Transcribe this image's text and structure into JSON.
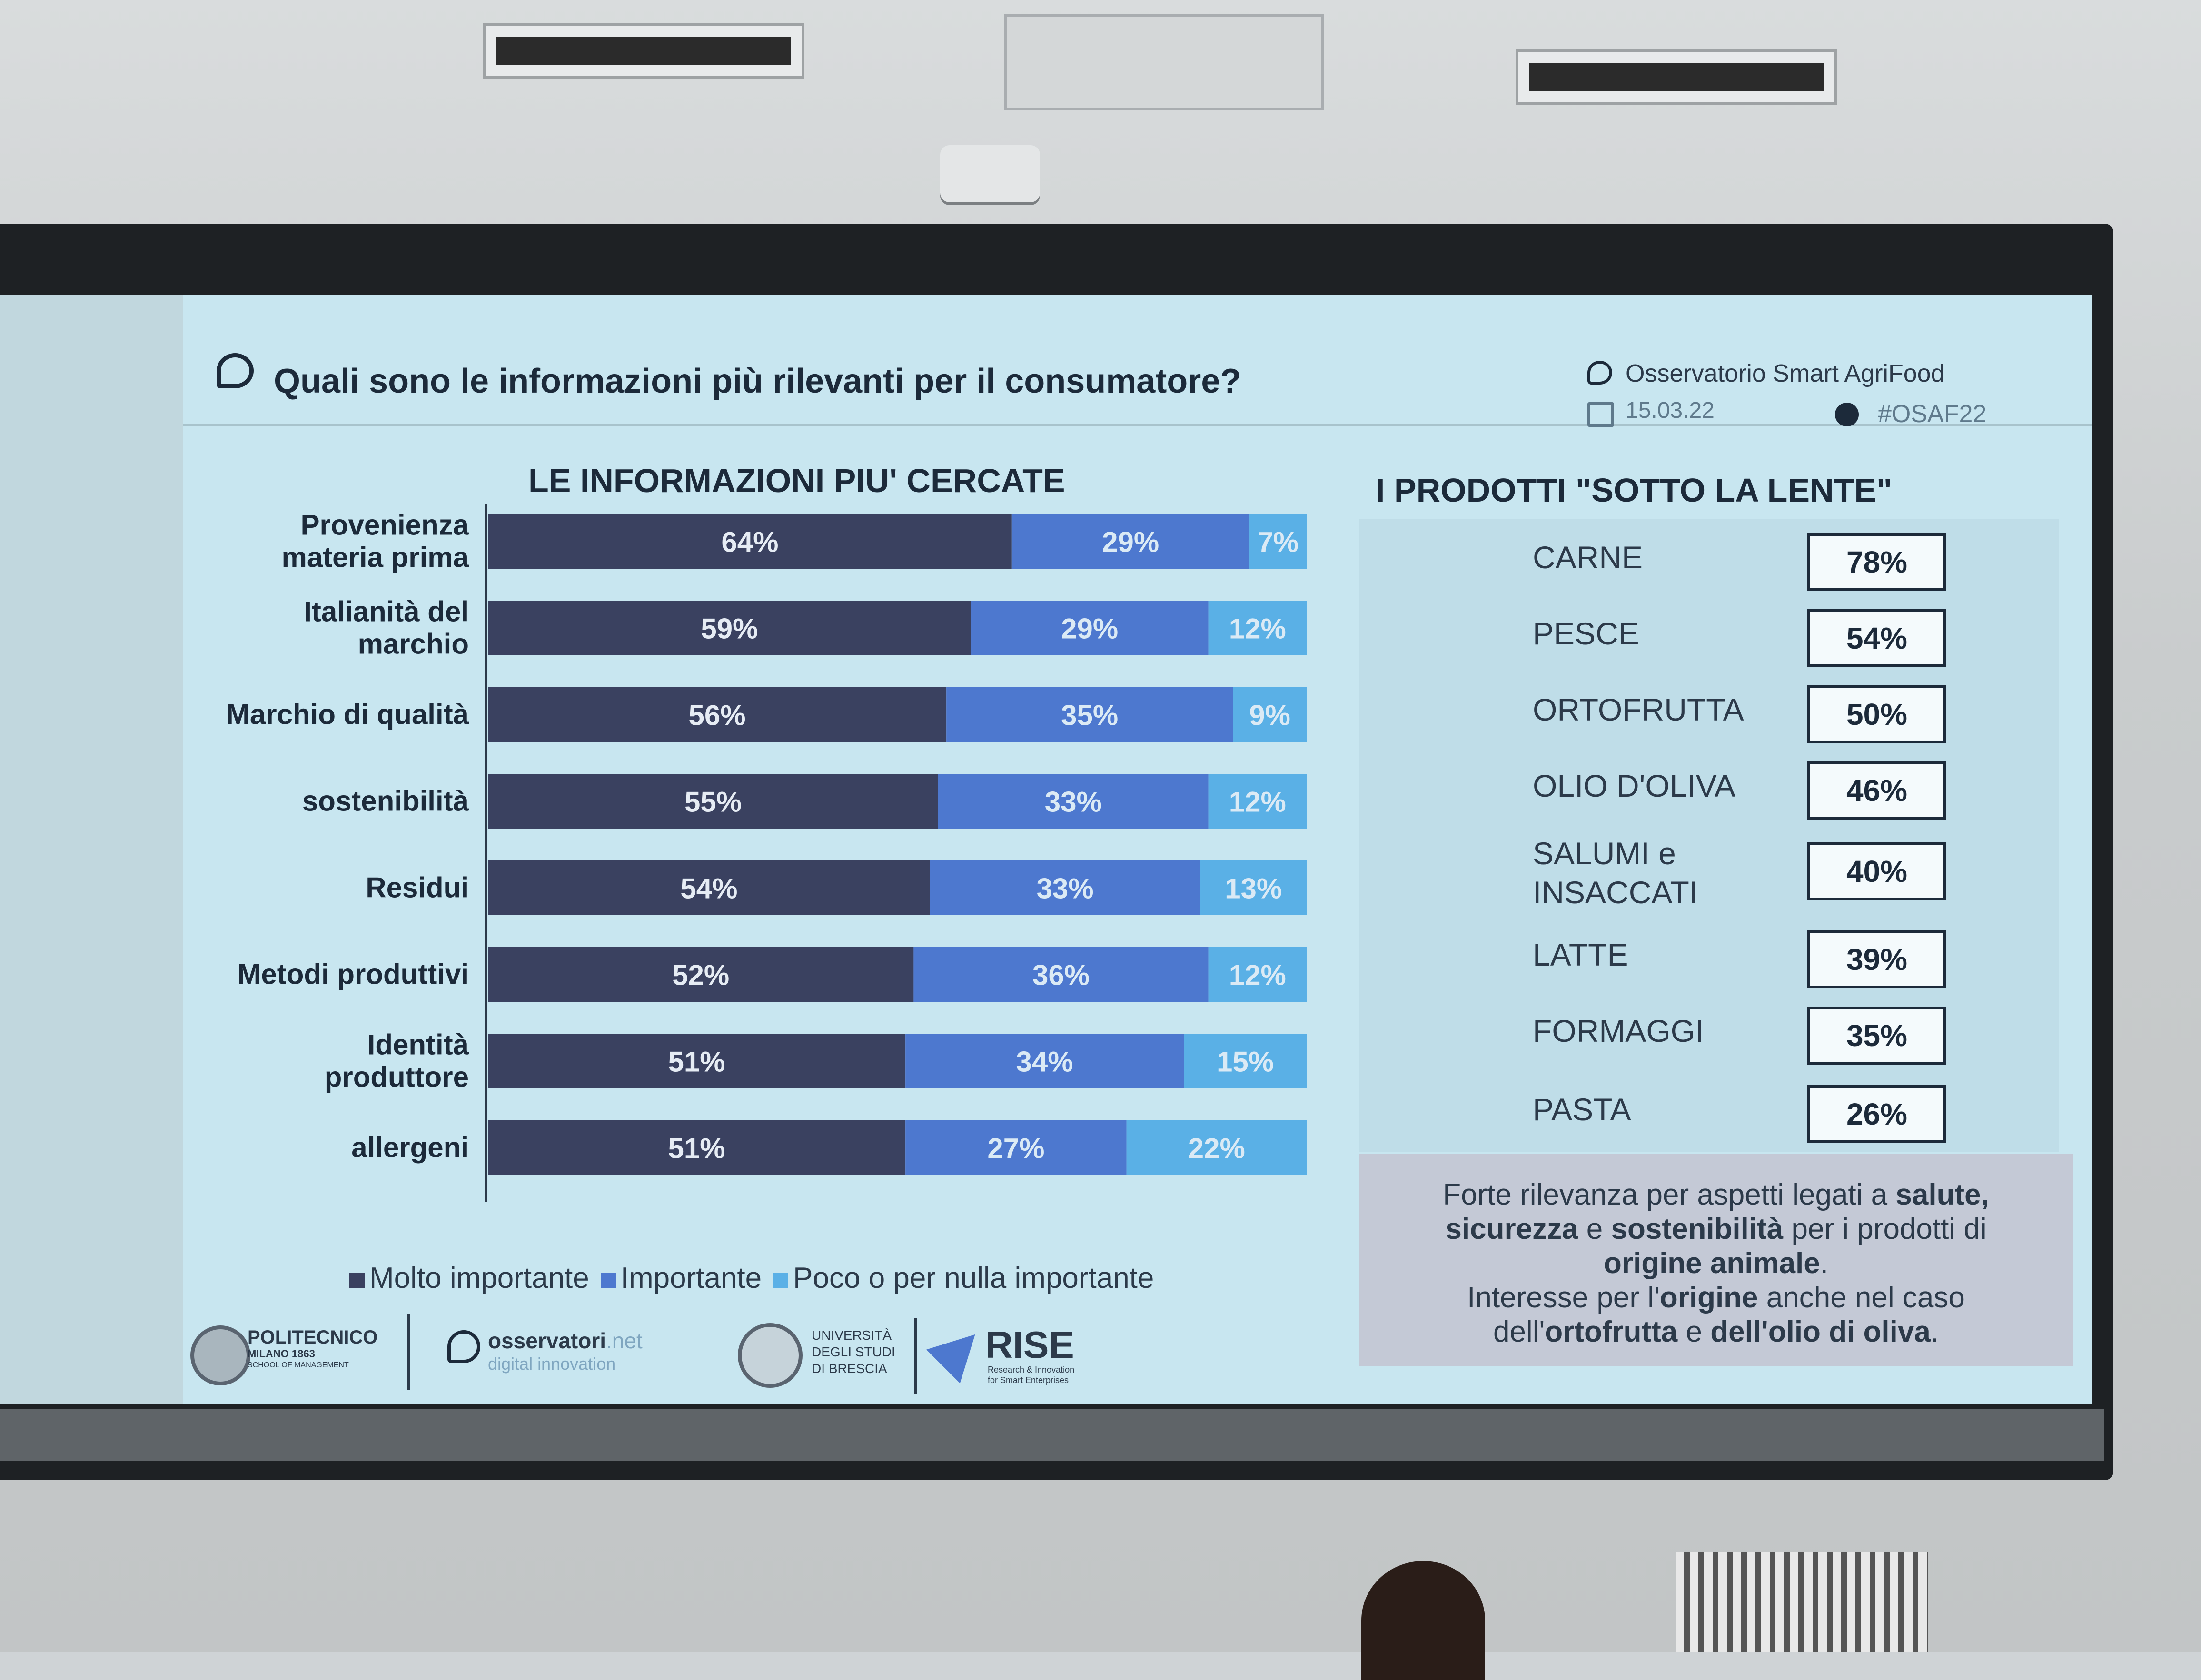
{
  "header": {
    "title": "Quali sono le informazioni più rilevanti per il consumatore?",
    "org": "Osservatorio Smart AgriFood",
    "date": "15.03.22",
    "hashtag": "#OSAF22"
  },
  "chart_data": [
    {
      "type": "bar",
      "orientation": "horizontal",
      "stacked": true,
      "title": "LE INFORMAZIONI PIU' CERCATE",
      "categories": [
        [
          "Provenienza",
          "materia prima"
        ],
        [
          "Italianità del",
          "marchio"
        ],
        [
          "Marchio di qualità"
        ],
        [
          "sostenibilità"
        ],
        [
          "Residui"
        ],
        [
          "Metodi produttivi"
        ],
        [
          "Identità",
          "produttore"
        ],
        [
          "allergeni"
        ]
      ],
      "series": [
        {
          "name": "Molto importante",
          "values": [
            64,
            59,
            56,
            55,
            54,
            52,
            51,
            51
          ],
          "labels": [
            "64%",
            "59%",
            "56%",
            "55%",
            "54%",
            "52%",
            "51%",
            "51%"
          ]
        },
        {
          "name": "Importante",
          "values": [
            29,
            29,
            35,
            33,
            33,
            36,
            34,
            27
          ],
          "labels": [
            "29%",
            "29%",
            "35%",
            "33%",
            "33%",
            "36%",
            "34%",
            "27%"
          ]
        },
        {
          "name": "Poco o per nulla importante",
          "values": [
            7,
            12,
            9,
            12,
            13,
            12,
            15,
            22
          ],
          "labels": [
            "7%",
            "12%",
            "9%",
            "12%",
            "13%",
            "12%",
            "15%",
            "22%"
          ]
        }
      ],
      "colors": [
        "#3a4160",
        "#4d78cf",
        "#5ab0e6"
      ],
      "xlim": [
        0,
        100
      ],
      "legend": "bottom"
    },
    {
      "type": "table",
      "title": "I PRODOTTI \"SOTTO LA LENTE\"",
      "rows": [
        {
          "label": [
            "CARNE"
          ],
          "value": "78%"
        },
        {
          "label": [
            "PESCE"
          ],
          "value": "54%"
        },
        {
          "label": [
            "ORTOFRUTTA"
          ],
          "value": "50%"
        },
        {
          "label": [
            "OLIO D'OLIVA"
          ],
          "value": "46%"
        },
        {
          "label": [
            "SALUMI e",
            "INSACCATI"
          ],
          "value": "40%"
        },
        {
          "label": [
            "LATTE"
          ],
          "value": "39%"
        },
        {
          "label": [
            "FORMAGGI"
          ],
          "value": "35%"
        },
        {
          "label": [
            "PASTA"
          ],
          "value": "26%"
        }
      ]
    }
  ],
  "note": {
    "lines": [
      [
        {
          "t": "Forte rilevanza per aspetti legati a ",
          "b": false
        },
        {
          "t": "salute,",
          "b": true
        }
      ],
      [
        {
          "t": "sicurezza",
          "b": true
        },
        {
          "t": " e ",
          "b": false
        },
        {
          "t": "sostenibilità",
          "b": true
        },
        {
          "t": " per i prodotti di",
          "b": false
        }
      ],
      [
        {
          "t": "origine animale",
          "b": true
        },
        {
          "t": ".",
          "b": false
        }
      ],
      [
        {
          "t": "Interesse per l'",
          "b": false
        },
        {
          "t": "origine",
          "b": true
        },
        {
          "t": " anche nel caso",
          "b": false
        }
      ],
      [
        {
          "t": "dell'",
          "b": false
        },
        {
          "t": "ortofrutta",
          "b": true
        },
        {
          "t": " e ",
          "b": false
        },
        {
          "t": "dell'olio di oliva",
          "b": true
        },
        {
          "t": ".",
          "b": false
        }
      ]
    ]
  },
  "logos": {
    "polimi": [
      "POLITECNICO",
      "MILANO 1863",
      "SCHOOL OF MANAGEMENT"
    ],
    "osservatori": [
      "osservatori",
      ".net",
      "digital innovation"
    ],
    "unibs": [
      "UNIVERSITÀ",
      "DEGLI STUDI",
      "DI BRESCIA"
    ],
    "rise": [
      "RISE",
      "Research & Innovation",
      "for Smart Enterprises"
    ]
  }
}
